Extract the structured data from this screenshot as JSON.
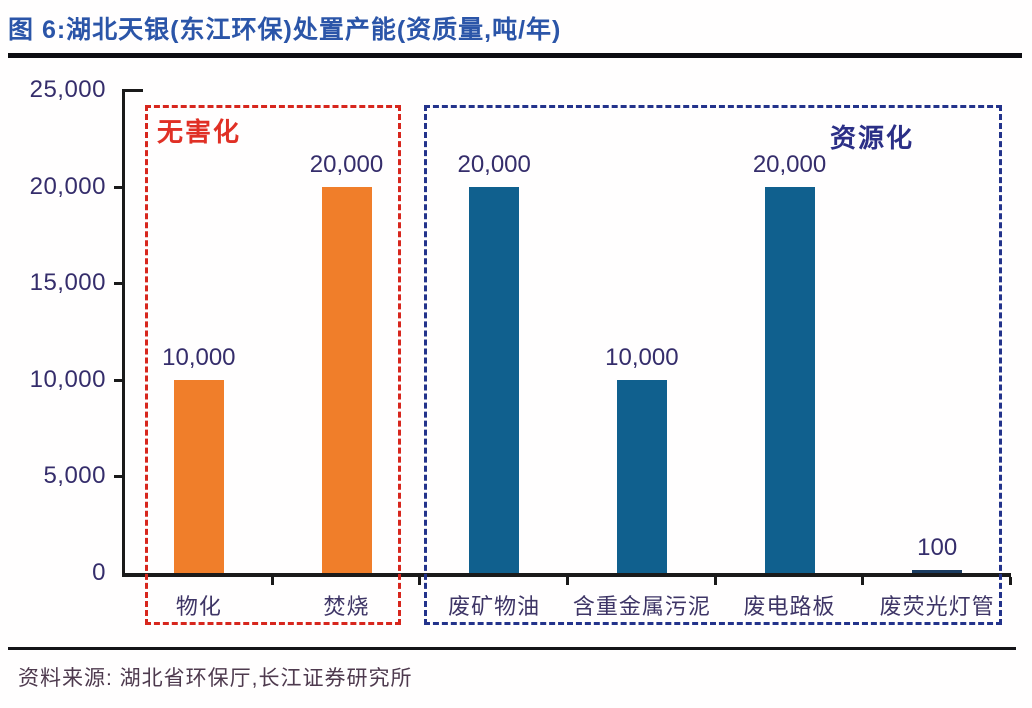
{
  "header": {
    "title": "图 6:湖北天银(东江环保)处置产能(资质量,吨/年)"
  },
  "chart_data": {
    "type": "bar",
    "title": "湖北天银(东江环保)处置产能",
    "unit": "吨/年",
    "categories": [
      "物化",
      "焚烧",
      "废矿物油",
      "含重金属污泥",
      "废电路板",
      "废荧光灯管"
    ],
    "values": [
      10000,
      20000,
      20000,
      10000,
      20000,
      100
    ],
    "data_labels": [
      "10,000",
      "20,000",
      "20,000",
      "10,000",
      "20,000",
      "100"
    ],
    "bar_colors": [
      "#F07E2A",
      "#F07E2A",
      "#10608E",
      "#10608E",
      "#10608E",
      "#1B3C61"
    ],
    "ylim": [
      0,
      25000
    ],
    "grid": false,
    "y_ticks": [
      {
        "label": "0",
        "value": 0
      },
      {
        "label": "5,000",
        "value": 5000
      },
      {
        "label": "10,000",
        "value": 10000
      },
      {
        "label": "15,000",
        "value": 15000
      },
      {
        "label": "20,000",
        "value": 20000
      },
      {
        "label": "25,000",
        "value": 25000
      }
    ],
    "groups": [
      {
        "label": "无害化",
        "color": "#D7261D",
        "categories": [
          "物化",
          "焚烧"
        ]
      },
      {
        "label": "资源化",
        "color": "#23338B",
        "categories": [
          "废矿物油",
          "含重金属污泥",
          "废电路板",
          "废荧光灯管"
        ]
      }
    ]
  },
  "footer": {
    "source": "资料来源: 湖北省环保厅,长江证券研究所"
  }
}
